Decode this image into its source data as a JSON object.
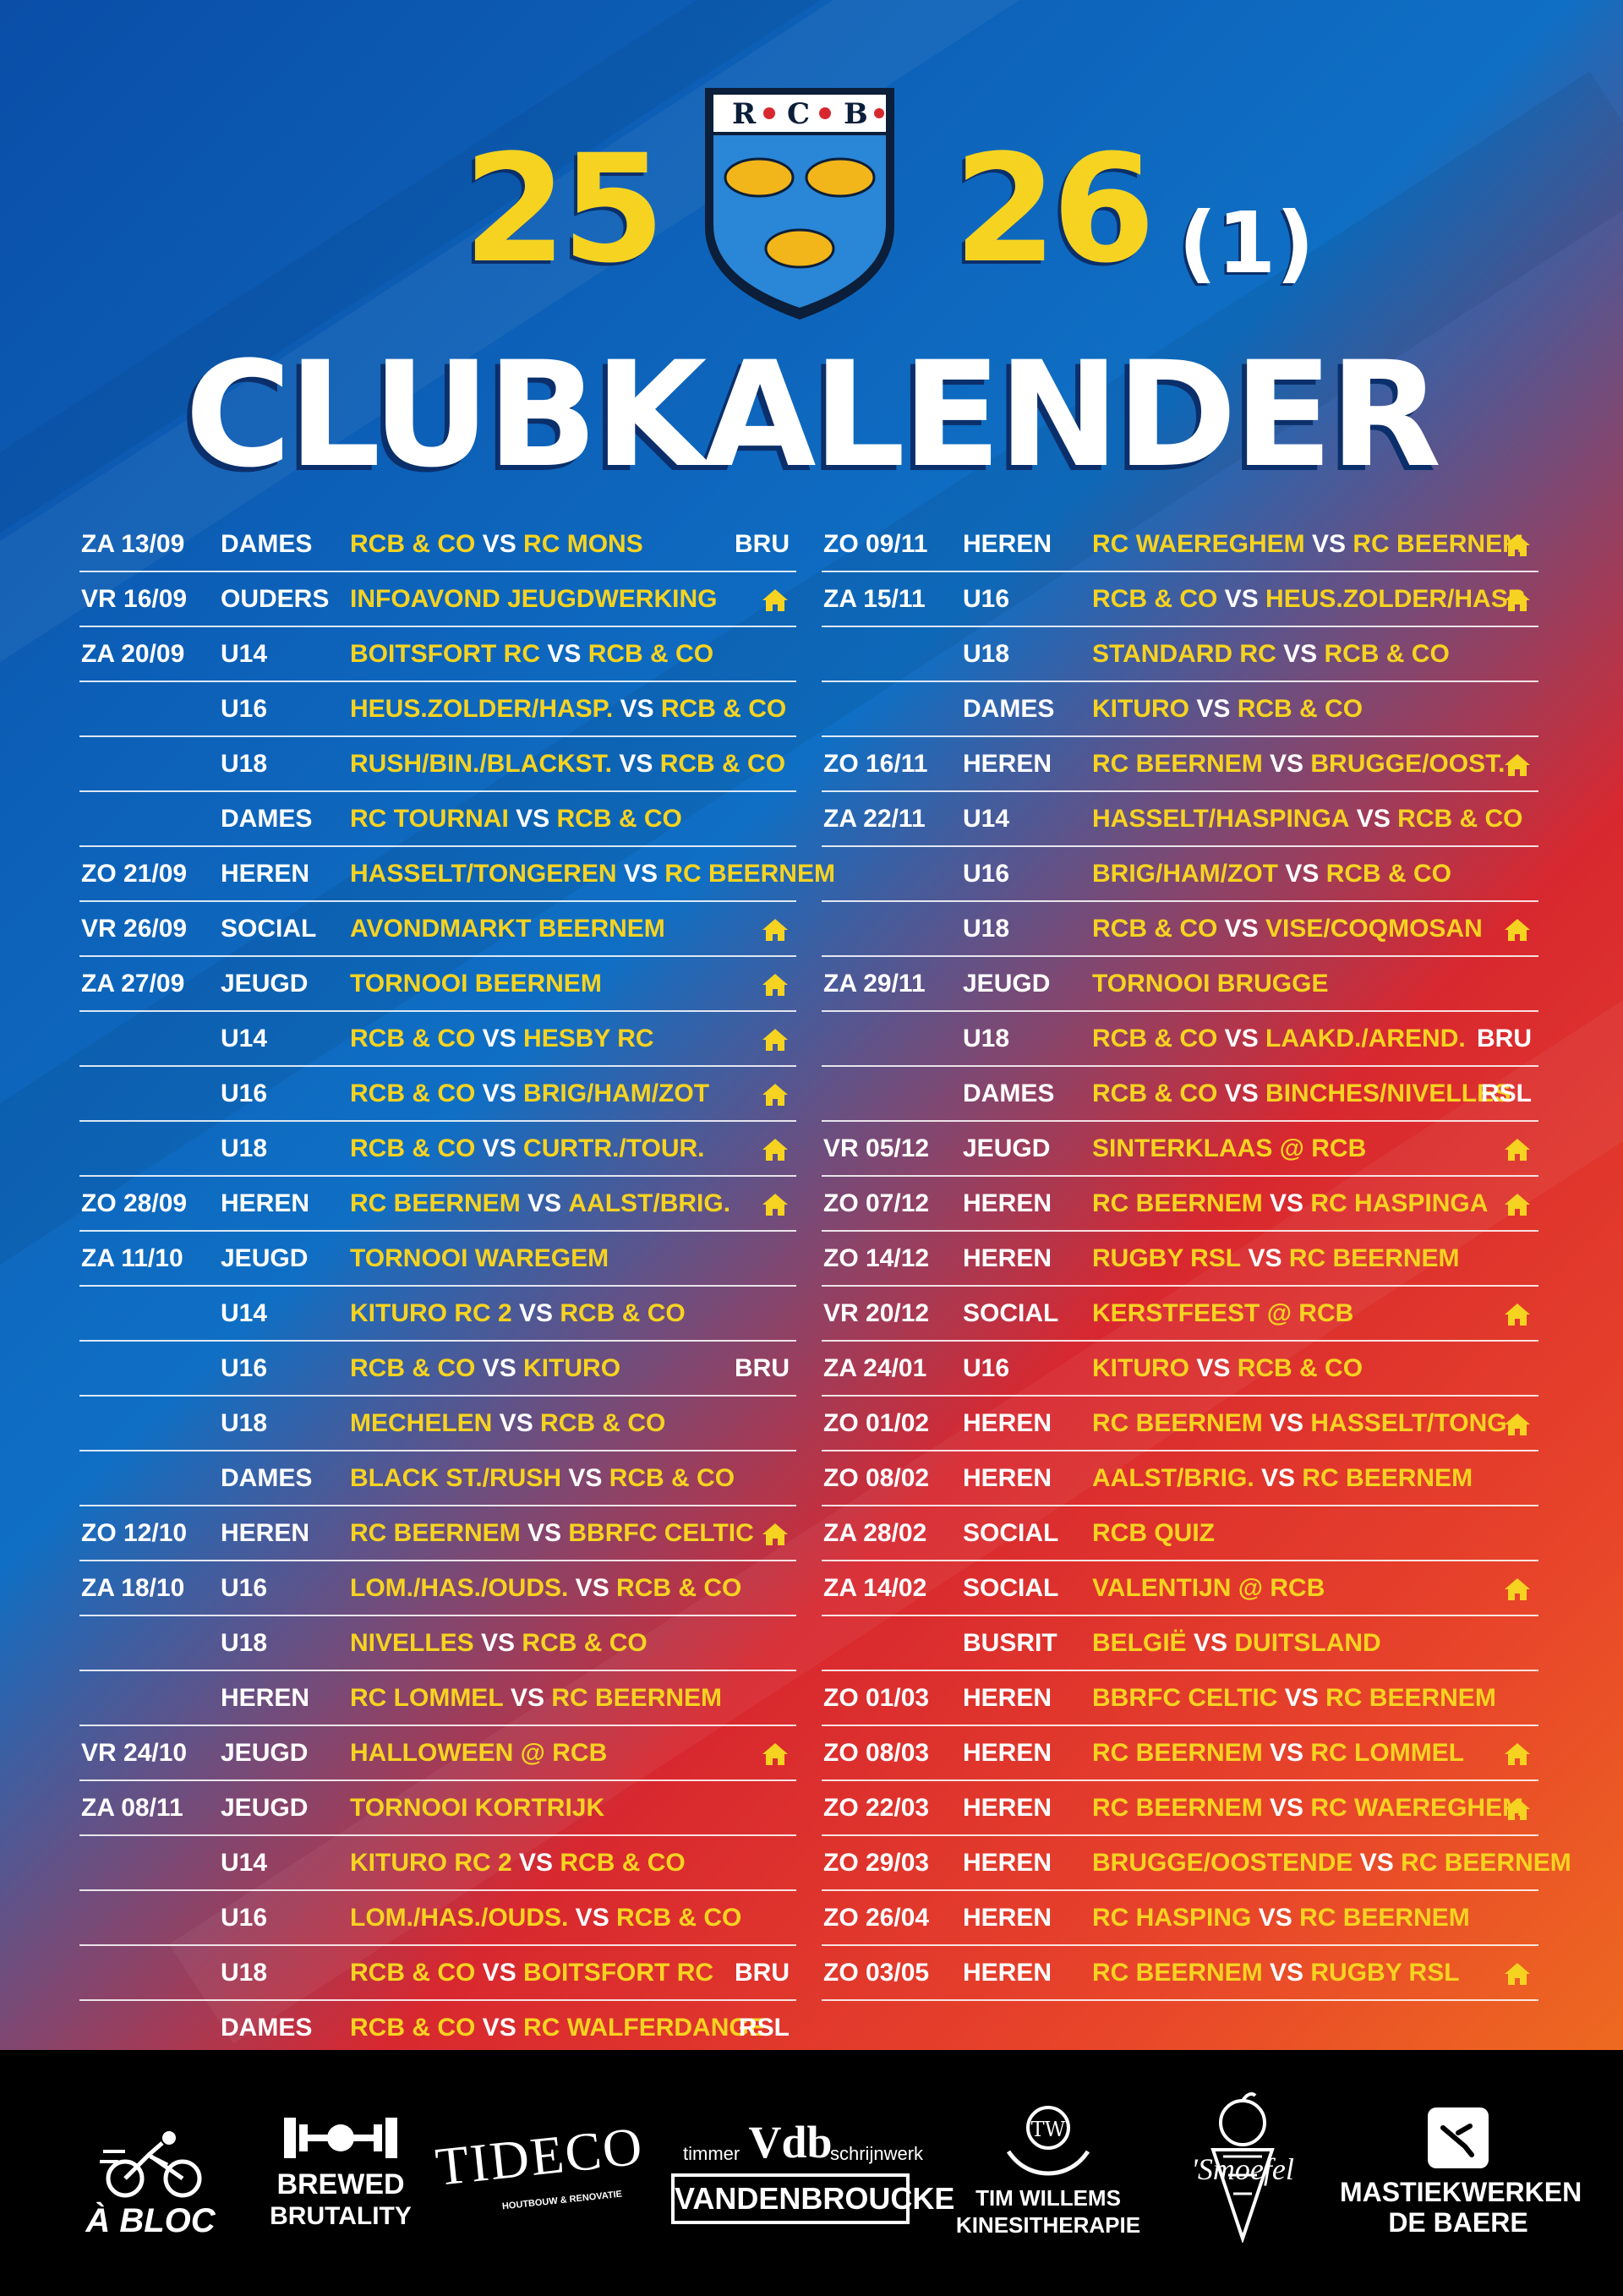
{
  "header": {
    "year_left": "25",
    "year_right": "26",
    "year_suffix": "(1)",
    "title": "CLUBKALENDER",
    "crest_letters": [
      "R",
      "C",
      "B"
    ]
  },
  "colors": {
    "yellow": "#f6d321",
    "white": "#ffffff",
    "blue": "#0f6fc4",
    "red": "#d8282f",
    "orange": "#f07a1c"
  },
  "home_icon": "home-icon",
  "schedule_left": [
    {
      "date": "ZA 13/09",
      "team": "DAMES",
      "a": "RCB & CO",
      "b": "RC MONS",
      "loc": "BRU"
    },
    {
      "date": "VR 16/09",
      "team": "OUDERS",
      "a": "INFOAVOND JEUGDWERKING",
      "b": "",
      "loc": "home"
    },
    {
      "date": "ZA 20/09",
      "team": "U14",
      "a": "BOITSFORT RC",
      "b": "RCB & CO",
      "loc": ""
    },
    {
      "date": "",
      "team": "U16",
      "a": "HEUS.ZOLDER/HASP.",
      "b": "RCB & CO",
      "loc": ""
    },
    {
      "date": "",
      "team": "U18",
      "a": "RUSH/BIN./BLACKST.",
      "b": "RCB & CO",
      "loc": ""
    },
    {
      "date": "",
      "team": "DAMES",
      "a": "RC TOURNAI",
      "b": "RCB & CO",
      "loc": ""
    },
    {
      "date": "ZO 21/09",
      "team": "HEREN",
      "a": "HASSELT/TONGEREN",
      "b": "RC BEERNEM",
      "loc": ""
    },
    {
      "date": "VR 26/09",
      "team": "SOCIAL",
      "a": "AVONDMARKT BEERNEM",
      "b": "",
      "loc": "home"
    },
    {
      "date": "ZA 27/09",
      "team": "JEUGD",
      "a": "TORNOOI BEERNEM",
      "b": "",
      "loc": "home"
    },
    {
      "date": "",
      "team": "U14",
      "a": "RCB & CO",
      "b": "HESBY RC",
      "loc": "home"
    },
    {
      "date": "",
      "team": "U16",
      "a": "RCB & CO",
      "b": "BRIG/HAM/ZOT",
      "loc": "home"
    },
    {
      "date": "",
      "team": "U18",
      "a": "RCB & CO",
      "b": "CURTR./TOUR.",
      "loc": "home"
    },
    {
      "date": "ZO 28/09",
      "team": "HEREN",
      "a": "RC BEERNEM",
      "b": "AALST/BRIG.",
      "loc": "home"
    },
    {
      "date": "ZA 11/10",
      "team": "JEUGD",
      "a": "TORNOOI WAREGEM",
      "b": "",
      "loc": ""
    },
    {
      "date": "",
      "team": "U14",
      "a": "KITURO RC 2",
      "b": "RCB & CO",
      "loc": ""
    },
    {
      "date": "",
      "team": "U16",
      "a": "RCB & CO",
      "b": "KITURO",
      "loc": "BRU"
    },
    {
      "date": "",
      "team": "U18",
      "a": "MECHELEN",
      "b": "RCB & CO",
      "loc": ""
    },
    {
      "date": "",
      "team": "DAMES",
      "a": "BLACK ST./RUSH",
      "b": "RCB & CO",
      "loc": ""
    },
    {
      "date": "ZO 12/10",
      "team": "HEREN",
      "a": "RC BEERNEM",
      "b": "BBRFC CELTIC",
      "loc": "home"
    },
    {
      "date": "ZA 18/10",
      "team": "U16",
      "a": "LOM./HAS./OUDS.",
      "b": "RCB & CO",
      "loc": ""
    },
    {
      "date": "",
      "team": "U18",
      "a": "NIVELLES",
      "b": "RCB & CO",
      "loc": ""
    },
    {
      "date": "",
      "team": "HEREN",
      "a": "RC LOMMEL",
      "b": "RC BEERNEM",
      "loc": ""
    },
    {
      "date": "VR 24/10",
      "team": "JEUGD",
      "a": "HALLOWEEN @ RCB",
      "b": "",
      "loc": "home"
    },
    {
      "date": "ZA 08/11",
      "team": "JEUGD",
      "a": "TORNOOI KORTRIJK",
      "b": "",
      "loc": ""
    },
    {
      "date": "",
      "team": "U14",
      "a": "KITURO RC 2",
      "b": "RCB & CO",
      "loc": ""
    },
    {
      "date": "",
      "team": "U16",
      "a": "LOM./HAS./OUDS.",
      "b": "RCB & CO",
      "loc": ""
    },
    {
      "date": "",
      "team": "U18",
      "a": "RCB & CO",
      "b": "BOITSFORT RC",
      "loc": "BRU"
    },
    {
      "date": "",
      "team": "DAMES",
      "a": "RCB & CO",
      "b": "RC WALFERDANGE",
      "loc": "RSL"
    }
  ],
  "schedule_right": [
    {
      "date": "ZO 09/11",
      "team": "HEREN",
      "a": "RC WAEREGHEM",
      "b": "RC BEERNEM",
      "loc": "home"
    },
    {
      "date": "ZA 15/11",
      "team": "U16",
      "a": "RCB & CO",
      "b": "HEUS.ZOLDER/HASP.",
      "loc": "home"
    },
    {
      "date": "",
      "team": "U18",
      "a": "STANDARD RC",
      "b": "RCB & CO",
      "loc": ""
    },
    {
      "date": "",
      "team": "DAMES",
      "a": "KITURO",
      "b": "RCB & CO",
      "loc": ""
    },
    {
      "date": "ZO 16/11",
      "team": "HEREN",
      "a": "RC BEERNEM",
      "b": "BRUGGE/OOST.",
      "loc": "home"
    },
    {
      "date": "ZA 22/11",
      "team": "U14",
      "a": "HASSELT/HASPINGA",
      "b": "RCB & CO",
      "loc": ""
    },
    {
      "date": "",
      "team": "U16",
      "a": "BRIG/HAM/ZOT",
      "b": "RCB & CO",
      "loc": ""
    },
    {
      "date": "",
      "team": "U18",
      "a": "RCB & CO",
      "b": "VISE/COQMOSAN",
      "loc": "home"
    },
    {
      "date": "ZA 29/11",
      "team": "JEUGD",
      "a": "TORNOOI BRUGGE",
      "b": "",
      "loc": ""
    },
    {
      "date": "",
      "team": "U18",
      "a": "RCB & CO",
      "b": "LAAKD./AREND.",
      "loc": "BRU"
    },
    {
      "date": "",
      "team": "DAMES",
      "a": "RCB & CO",
      "b": "BINCHES/NIVELLES",
      "loc": "RSL"
    },
    {
      "date": "VR 05/12",
      "team": "JEUGD",
      "a": "SINTERKLAAS @ RCB",
      "b": "",
      "loc": "home"
    },
    {
      "date": "ZO 07/12",
      "team": "HEREN",
      "a": "RC BEERNEM",
      "b": "RC HASPINGA",
      "loc": "home"
    },
    {
      "date": "ZO 14/12",
      "team": "HEREN",
      "a": "RUGBY RSL",
      "b": "RC BEERNEM",
      "loc": ""
    },
    {
      "date": "VR 20/12",
      "team": "SOCIAL",
      "a": "KERSTFEEST @ RCB",
      "b": "",
      "loc": "home"
    },
    {
      "date": "ZA 24/01",
      "team": "U16",
      "a": "KITURO",
      "b": "RCB & CO",
      "loc": ""
    },
    {
      "date": "ZO 01/02",
      "team": "HEREN",
      "a": "RC BEERNEM",
      "b": "HASSELT/TONG.",
      "loc": "home"
    },
    {
      "date": "ZO 08/02",
      "team": "HEREN",
      "a": "AALST/BRIG.",
      "b": "RC BEERNEM",
      "loc": ""
    },
    {
      "date": "ZA 28/02",
      "team": "SOCIAL",
      "a": "RCB QUIZ",
      "b": "",
      "loc": ""
    },
    {
      "date": "ZA 14/02",
      "team": "SOCIAL",
      "a": "VALENTIJN @ RCB",
      "b": "",
      "loc": "home"
    },
    {
      "date": "",
      "team": "BUSRIT",
      "a": "BELGIË",
      "b": "DUITSLAND",
      "loc": ""
    },
    {
      "date": "ZO 01/03",
      "team": "HEREN",
      "a": "BBRFC CELTIC",
      "b": "RC BEERNEM",
      "loc": ""
    },
    {
      "date": "ZO 08/03",
      "team": "HEREN",
      "a": "RC BEERNEM",
      "b": "RC LOMMEL",
      "loc": "home"
    },
    {
      "date": "ZO 22/03",
      "team": "HEREN",
      "a": "RC BEERNEM",
      "b": "RC WAEREGHEM",
      "loc": "home"
    },
    {
      "date": "ZO 29/03",
      "team": "HEREN",
      "a": "BRUGGE/OOSTENDE",
      "b": "RC BEERNEM",
      "loc": ""
    },
    {
      "date": "ZO 26/04",
      "team": "HEREN",
      "a": "RC HASPING",
      "b": "RC BEERNEM",
      "loc": ""
    },
    {
      "date": "ZO 03/05",
      "team": "HEREN",
      "a": "RC BEERNEM",
      "b": "RUGBY RSL",
      "loc": "home"
    }
  ],
  "vs_label": "VS",
  "sponsors": {
    "abloc": "À BLOC",
    "brewed_1": "BREWED",
    "brewed_2": "BRUTALITY",
    "tideco": "TIDECO",
    "tideco_sub": "HOUTBOUW & RENOVATIE",
    "vdb_left": "timmer",
    "vdb_mark": "Vdb",
    "vdb_right": "schrijnwerk",
    "vdb_name": "VANDENBROUCKE",
    "tw_1": "TIM WILLEMS",
    "tw_2": "KINESITHERAPIE",
    "smoefel": "'Smoefel",
    "mast_1": "MASTIEKWERKEN",
    "mast_2": "DE BAERE"
  }
}
